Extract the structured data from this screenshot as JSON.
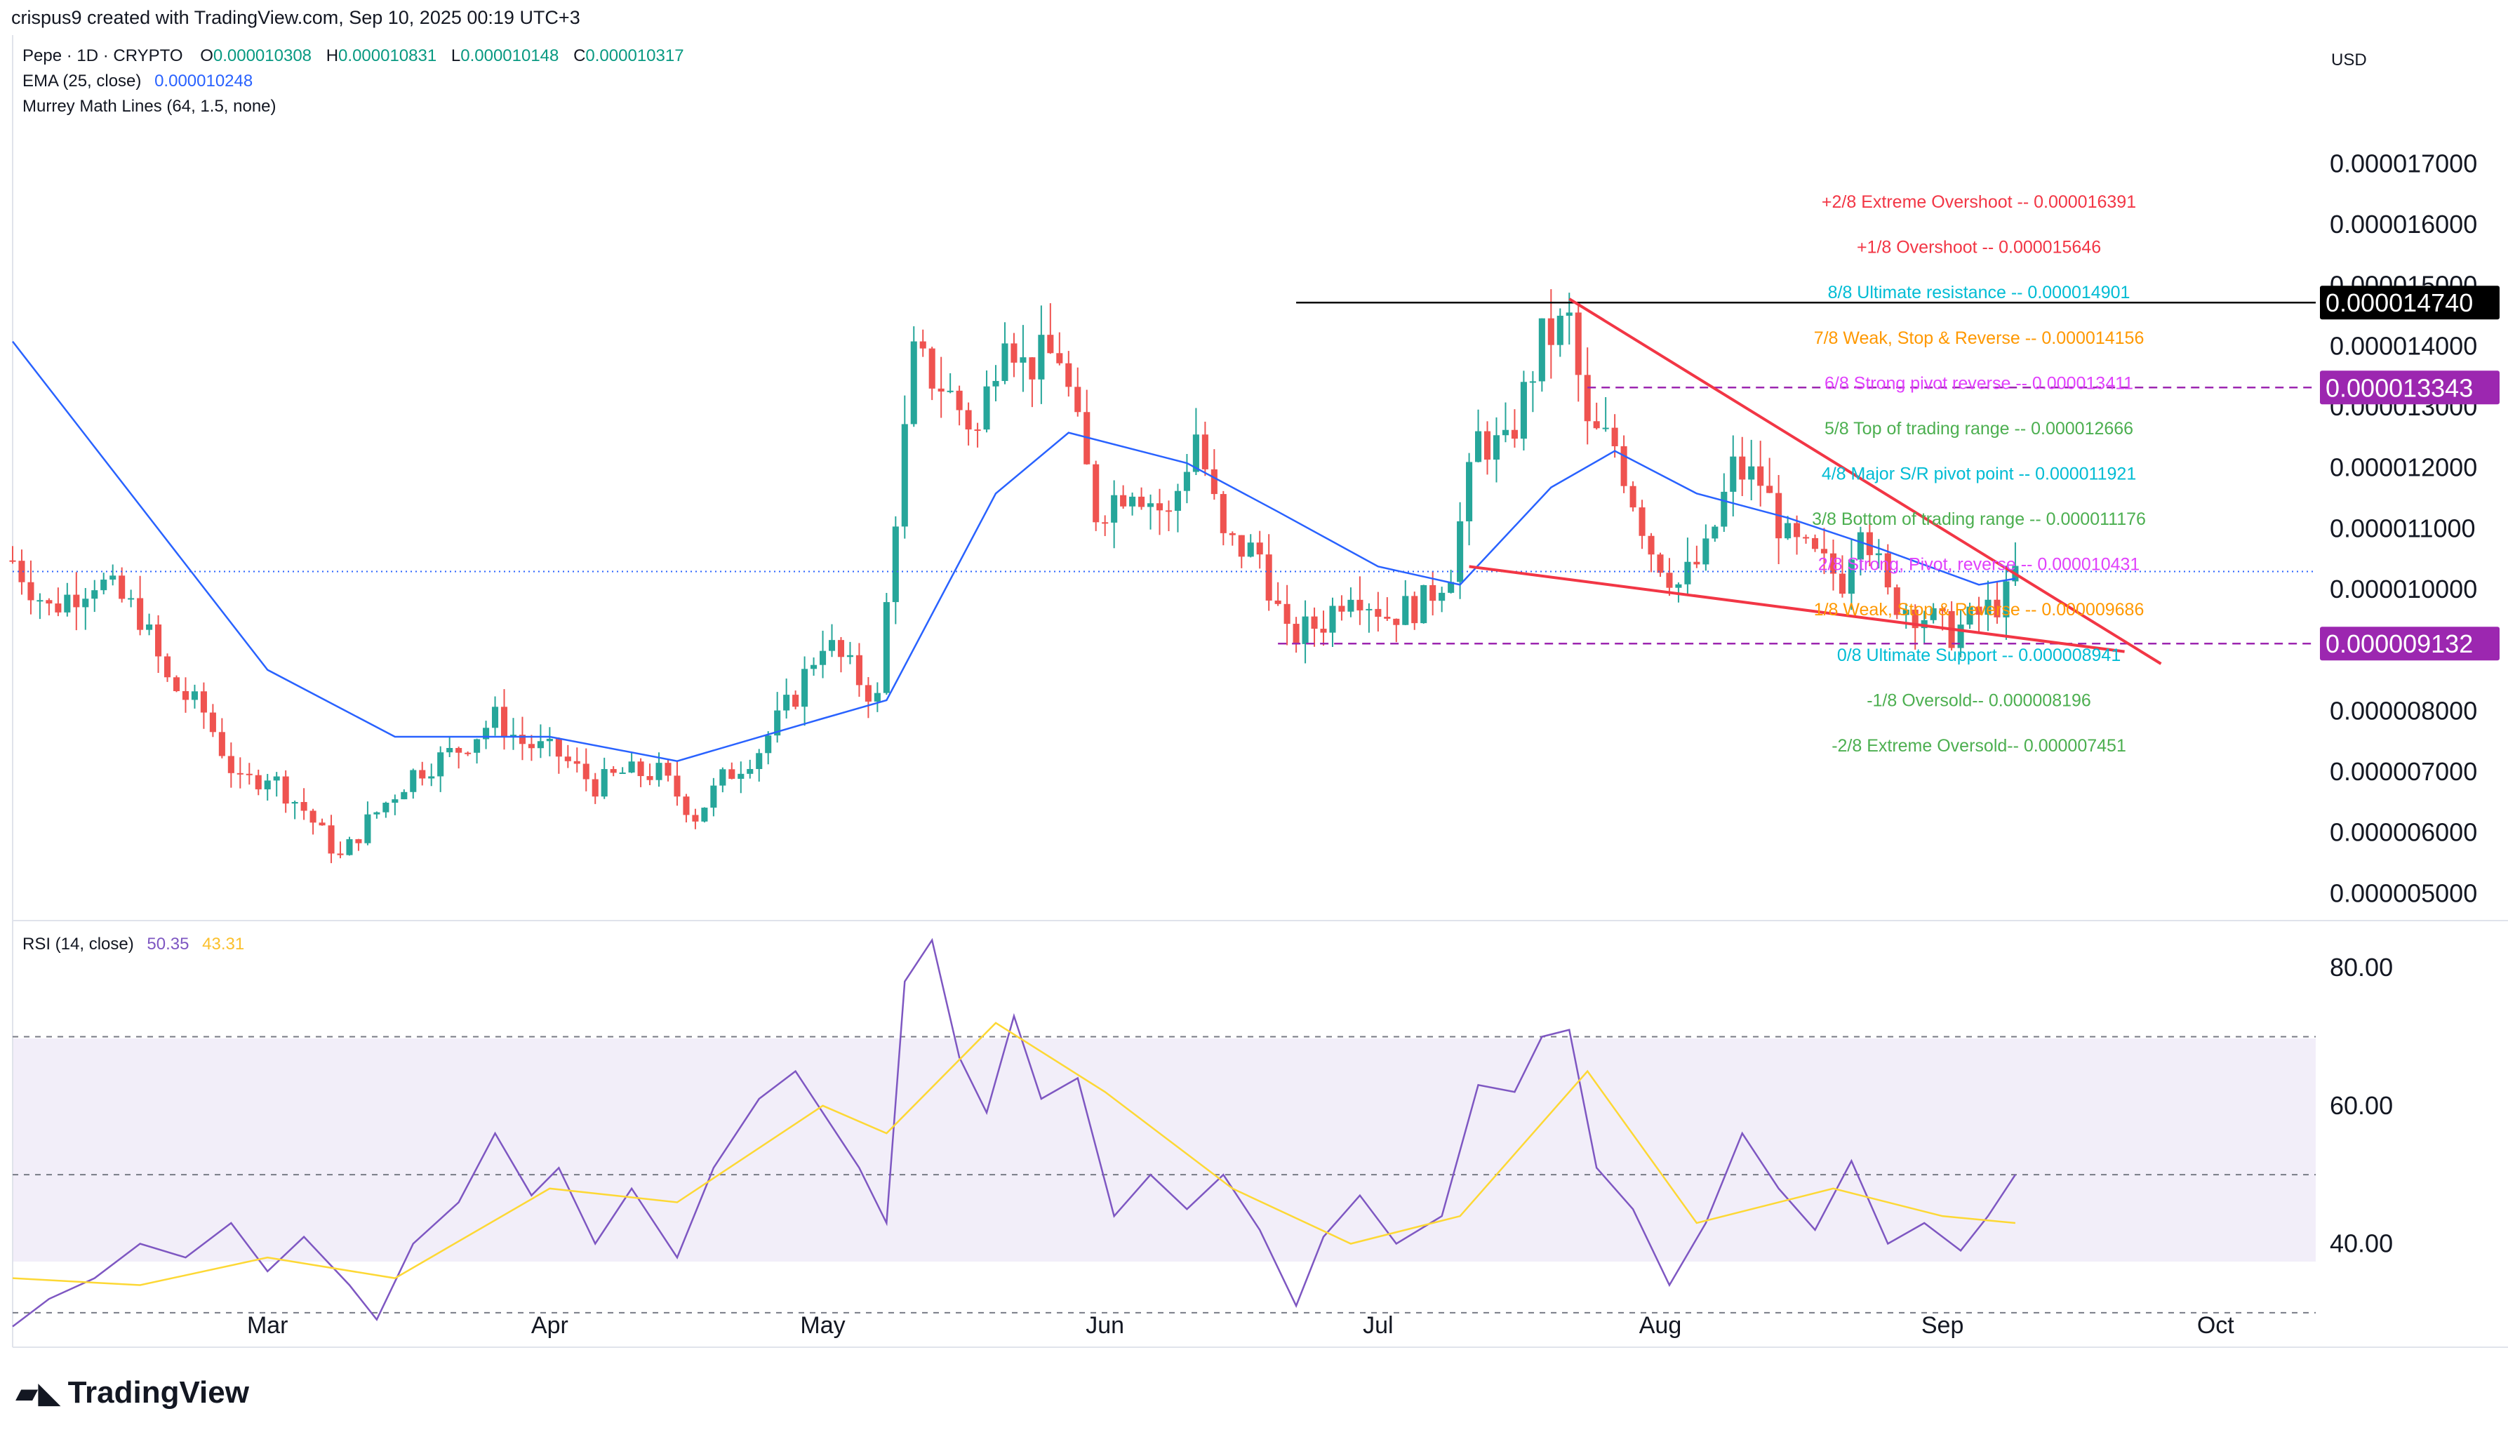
{
  "header": {
    "attribution": "crispus9 created with TradingView.com, Sep 10, 2025 00:19 UTC+3",
    "symbol": "Pepe · 1D · CRYPTO",
    "ohlc": [
      {
        "label": "O",
        "value": "0.000010308"
      },
      {
        "label": "H",
        "value": "0.000010831"
      },
      {
        "label": "L",
        "value": "0.000010148"
      },
      {
        "label": "C",
        "value": "0.000010317"
      }
    ],
    "ema": {
      "label": "EMA (25, close)",
      "value": "0.000010248"
    },
    "murrey": {
      "label": "Murrey Math Lines (64, 1.5, none)"
    },
    "rsi": {
      "label": "RSI (14, close)",
      "value": "50.35",
      "ma_value": "43.31"
    },
    "currency": "USD"
  },
  "branding": {
    "name": "TradingView",
    "icon": "tradingview-logo-icon"
  },
  "colors": {
    "up": "#26a69a",
    "down": "#ef5350",
    "ema": "#2962ff",
    "rsi": "#7e57c2",
    "rsi_ma": "#fdd835",
    "wedge": "#f23645",
    "murrey_pivot": "#9c27b0",
    "black": "#000000"
  },
  "chart_data": [
    {
      "type": "candlestick",
      "title": "Pepe · 1D · CRYPTO",
      "xlabel": "",
      "ylabel": "",
      "x_ticks": [
        "Mar",
        "Apr",
        "May",
        "Jun",
        "Jul",
        "Aug",
        "Sep",
        "Oct"
      ],
      "x_range": [
        "2025-02-01",
        "2025-10-12"
      ],
      "y_ticks": [
        "0.000017000",
        "0.000016000",
        "0.000015000",
        "0.000014000",
        "0.000013000",
        "0.000012000",
        "0.000011000",
        "0.000010000",
        "0.000008000",
        "0.000007000",
        "0.000006000",
        "0.000005000"
      ],
      "ylim": [
        4.6e-06,
        1.81e-05
      ],
      "price_badges": [
        {
          "value": "0.000014740",
          "color": "#000000"
        },
        {
          "value": "0.000013343",
          "color": "#9c27b0"
        },
        {
          "value": "0.000009132",
          "color": "#9c27b0"
        }
      ],
      "last_price": 1.0317e-05,
      "horizontal_lines": [
        {
          "from": "2025-06-22",
          "to": "2025-10-12",
          "y": 1.474e-05,
          "color": "#000000",
          "style": "solid"
        },
        {
          "from": "2025-07-24",
          "to": "2025-10-12",
          "y": 1.3343e-05,
          "color": "#9c27b0",
          "style": "dashed"
        },
        {
          "from": "2025-06-20",
          "to": "2025-10-12",
          "y": 9.132e-06,
          "color": "#9c27b0",
          "style": "dashed"
        }
      ],
      "wedge_lines": [
        {
          "from": [
            "2025-07-22",
            1.48e-05
          ],
          "to": [
            "2025-09-25",
            8.8e-06
          ]
        },
        {
          "from": [
            "2025-07-11",
            1.04e-05
          ],
          "to": [
            "2025-09-21",
            9e-06
          ]
        }
      ],
      "murrey_levels": [
        {
          "label": "+2/8 Extreme Overshoot --",
          "value": "0.000016391",
          "color": "#f23645"
        },
        {
          "label": "+1/8 Overshoot --",
          "value": "0.000015646",
          "color": "#f23645"
        },
        {
          "label": "8/8 Ultimate resistance --",
          "value": "0.000014901",
          "color": "#00bcd4"
        },
        {
          "label": "7/8 Weak, Stop & Reverse --",
          "value": "0.000014156",
          "color": "#ff9800"
        },
        {
          "label": "6/8 Strong pivot reverse --",
          "value": "0.000013411",
          "color": "#e040fb"
        },
        {
          "label": "5/8 Top of trading range --",
          "value": "0.000012666",
          "color": "#4caf50"
        },
        {
          "label": "4/8 Major S/R pivot point --",
          "value": "0.000011921",
          "color": "#00bcd4"
        },
        {
          "label": "3/8 Bottom of trading range --",
          "value": "0.000011176",
          "color": "#4caf50"
        },
        {
          "label": "2/8 Strong, Pivot, reverse --",
          "value": "0.000010431",
          "color": "#e040fb"
        },
        {
          "label": "1/8 Weak, Stop & Reverse --",
          "value": "0.000009686",
          "color": "#ff9800"
        },
        {
          "label": "0/8 Ultimate Support --",
          "value": "0.000008941",
          "color": "#00bcd4"
        },
        {
          "label": "-1/8 Oversold--",
          "value": "0.000008196",
          "color": "#4caf50"
        },
        {
          "label": "-2/8 Extreme Oversold--",
          "value": "0.000007451",
          "color": "#4caf50"
        }
      ],
      "murrey_label_dates": [
        "2025-09-05",
        "2025-09-05",
        "2025-09-05",
        "2025-09-05",
        "2025-09-05",
        "2025-09-05",
        "2025-09-05",
        "2025-09-05",
        "2025-09-05",
        "2025-09-05",
        "2025-09-05",
        "2025-09-05",
        "2025-09-05"
      ],
      "ohlc_keypoints": [
        [
          "2025-02-01",
          1.05e-05
        ],
        [
          "2025-02-05",
          9.7e-06
        ],
        [
          "2025-02-10",
          1.02e-05
        ],
        [
          "2025-02-15",
          9.6e-06
        ],
        [
          "2025-02-18",
          8.5e-06
        ],
        [
          "2025-02-22",
          8e-06
        ],
        [
          "2025-02-26",
          6.8e-06
        ],
        [
          "2025-03-01",
          7e-06
        ],
        [
          "2025-03-05",
          6.4e-06
        ],
        [
          "2025-03-09",
          5.6e-06
        ],
        [
          "2025-03-12",
          6.2e-06
        ],
        [
          "2025-03-17",
          7e-06
        ],
        [
          "2025-03-22",
          7.4e-06
        ],
        [
          "2025-03-26",
          7.9e-06
        ],
        [
          "2025-03-29",
          7.5e-06
        ],
        [
          "2025-04-02",
          7.3e-06
        ],
        [
          "2025-04-06",
          6.8e-06
        ],
        [
          "2025-04-09",
          7e-06
        ],
        [
          "2025-04-13",
          7e-06
        ],
        [
          "2025-04-17",
          6.3e-06
        ],
        [
          "2025-04-20",
          6.9e-06
        ],
        [
          "2025-04-24",
          7.4e-06
        ],
        [
          "2025-04-28",
          8.3e-06
        ],
        [
          "2025-05-01",
          9.2e-06
        ],
        [
          "2025-05-04",
          8.7e-06
        ],
        [
          "2025-05-07",
          8.2e-06
        ],
        [
          "2025-05-09",
          1.13e-05
        ],
        [
          "2025-05-11",
          1.38e-05
        ],
        [
          "2025-05-14",
          1.34e-05
        ],
        [
          "2025-05-18",
          1.26e-05
        ],
        [
          "2025-05-21",
          1.45e-05
        ],
        [
          "2025-05-23",
          1.37e-05
        ],
        [
          "2025-05-27",
          1.39e-05
        ],
        [
          "2025-05-31",
          1.13e-05
        ],
        [
          "2025-06-04",
          1.18e-05
        ],
        [
          "2025-06-08",
          1.12e-05
        ],
        [
          "2025-06-11",
          1.26e-05
        ],
        [
          "2025-06-14",
          1.08e-05
        ],
        [
          "2025-06-18",
          1.06e-05
        ],
        [
          "2025-06-21",
          9.2e-06
        ],
        [
          "2025-06-25",
          9.5e-06
        ],
        [
          "2025-06-28",
          1.01e-05
        ],
        [
          "2025-07-02",
          9.6e-06
        ],
        [
          "2025-07-06",
          9.8e-06
        ],
        [
          "2025-07-09",
          1.04e-05
        ],
        [
          "2025-07-12",
          1.25e-05
        ],
        [
          "2025-07-15",
          1.23e-05
        ],
        [
          "2025-07-19",
          1.41e-05
        ],
        [
          "2025-07-22",
          1.44e-05
        ],
        [
          "2025-07-24",
          1.26e-05
        ],
        [
          "2025-07-27",
          1.24e-05
        ],
        [
          "2025-07-31",
          1.07e-05
        ],
        [
          "2025-08-03",
          1.01e-05
        ],
        [
          "2025-08-06",
          1.06e-05
        ],
        [
          "2025-08-09",
          1.2e-05
        ],
        [
          "2025-08-12",
          1.18e-05
        ],
        [
          "2025-08-15",
          1.08e-05
        ],
        [
          "2025-08-18",
          1.05e-05
        ],
        [
          "2025-08-21",
          1.02e-05
        ],
        [
          "2025-08-23",
          1.13e-05
        ],
        [
          "2025-08-26",
          9.9e-06
        ],
        [
          "2025-08-30",
          9.6e-06
        ],
        [
          "2025-09-02",
          9.3e-06
        ],
        [
          "2025-09-05",
          9.6e-06
        ],
        [
          "2025-09-08",
          9.9e-06
        ],
        [
          "2025-09-09",
          1.03e-05
        ]
      ],
      "ema_keypoints": [
        [
          "2025-02-01",
          1.41e-05
        ],
        [
          "2025-02-15",
          1.14e-05
        ],
        [
          "2025-03-01",
          8.7e-06
        ],
        [
          "2025-03-15",
          7.6e-06
        ],
        [
          "2025-04-01",
          7.6e-06
        ],
        [
          "2025-04-15",
          7.2e-06
        ],
        [
          "2025-05-01",
          7.9e-06
        ],
        [
          "2025-05-08",
          8.2e-06
        ],
        [
          "2025-05-20",
          1.16e-05
        ],
        [
          "2025-05-28",
          1.26e-05
        ],
        [
          "2025-06-10",
          1.21e-05
        ],
        [
          "2025-06-20",
          1.13e-05
        ],
        [
          "2025-07-01",
          1.04e-05
        ],
        [
          "2025-07-10",
          1.01e-05
        ],
        [
          "2025-07-20",
          1.17e-05
        ],
        [
          "2025-07-27",
          1.23e-05
        ],
        [
          "2025-08-05",
          1.16e-05
        ],
        [
          "2025-08-15",
          1.12e-05
        ],
        [
          "2025-08-25",
          1.07e-05
        ],
        [
          "2025-09-05",
          1.01e-05
        ],
        [
          "2025-09-09",
          1.02e-05
        ]
      ]
    },
    {
      "type": "line",
      "title": "RSI (14, close)",
      "xlabel": "",
      "ylabel": "",
      "y_ticks": [
        "80.00",
        "60.00",
        "40.00"
      ],
      "ylim": [
        25,
        85
      ],
      "bands": [
        70,
        50,
        30
      ],
      "series": [
        {
          "values": [
            [
              "2025-02-01",
              28
            ],
            [
              "2025-02-05",
              32
            ],
            [
              "2025-02-10",
              35
            ],
            [
              "2025-02-15",
              40
            ],
            [
              "2025-02-20",
              38
            ],
            [
              "2025-02-25",
              43
            ],
            [
              "2025-03-01",
              36
            ],
            [
              "2025-03-05",
              41
            ],
            [
              "2025-03-10",
              34
            ],
            [
              "2025-03-13",
              29
            ],
            [
              "2025-03-17",
              40
            ],
            [
              "2025-03-22",
              46
            ],
            [
              "2025-03-26",
              56
            ],
            [
              "2025-03-30",
              47
            ],
            [
              "2025-04-02",
              51
            ],
            [
              "2025-04-06",
              40
            ],
            [
              "2025-04-10",
              48
            ],
            [
              "2025-04-15",
              38
            ],
            [
              "2025-04-19",
              51
            ],
            [
              "2025-04-24",
              61
            ],
            [
              "2025-04-28",
              65
            ],
            [
              "2025-05-02",
              57
            ],
            [
              "2025-05-05",
              51
            ],
            [
              "2025-05-08",
              43
            ],
            [
              "2025-05-10",
              78
            ],
            [
              "2025-05-13",
              84
            ],
            [
              "2025-05-16",
              67
            ],
            [
              "2025-05-19",
              59
            ],
            [
              "2025-05-22",
              73
            ],
            [
              "2025-05-25",
              61
            ],
            [
              "2025-05-29",
              64
            ],
            [
              "2025-06-02",
              44
            ],
            [
              "2025-06-06",
              50
            ],
            [
              "2025-06-10",
              45
            ],
            [
              "2025-06-14",
              50
            ],
            [
              "2025-06-18",
              42
            ],
            [
              "2025-06-22",
              31
            ],
            [
              "2025-06-25",
              41
            ],
            [
              "2025-06-29",
              47
            ],
            [
              "2025-07-03",
              40
            ],
            [
              "2025-07-08",
              44
            ],
            [
              "2025-07-12",
              63
            ],
            [
              "2025-07-16",
              62
            ],
            [
              "2025-07-19",
              70
            ],
            [
              "2025-07-22",
              71
            ],
            [
              "2025-07-25",
              51
            ],
            [
              "2025-07-29",
              45
            ],
            [
              "2025-08-02",
              34
            ],
            [
              "2025-08-06",
              43
            ],
            [
              "2025-08-10",
              56
            ],
            [
              "2025-08-14",
              48
            ],
            [
              "2025-08-18",
              42
            ],
            [
              "2025-08-22",
              52
            ],
            [
              "2025-08-26",
              40
            ],
            [
              "2025-08-30",
              43
            ],
            [
              "2025-09-03",
              39
            ],
            [
              "2025-09-06",
              44
            ],
            [
              "2025-09-09",
              50
            ]
          ]
        },
        {
          "values": [
            [
              "2025-02-01",
              35
            ],
            [
              "2025-02-15",
              34
            ],
            [
              "2025-03-01",
              38
            ],
            [
              "2025-03-15",
              35
            ],
            [
              "2025-04-01",
              48
            ],
            [
              "2025-04-15",
              46
            ],
            [
              "2025-05-01",
              60
            ],
            [
              "2025-05-08",
              56
            ],
            [
              "2025-05-20",
              72
            ],
            [
              "2025-06-01",
              62
            ],
            [
              "2025-06-15",
              48
            ],
            [
              "2025-06-28",
              40
            ],
            [
              "2025-07-10",
              44
            ],
            [
              "2025-07-24",
              65
            ],
            [
              "2025-08-05",
              43
            ],
            [
              "2025-08-20",
              48
            ],
            [
              "2025-09-01",
              44
            ],
            [
              "2025-09-09",
              43
            ]
          ]
        }
      ]
    }
  ]
}
